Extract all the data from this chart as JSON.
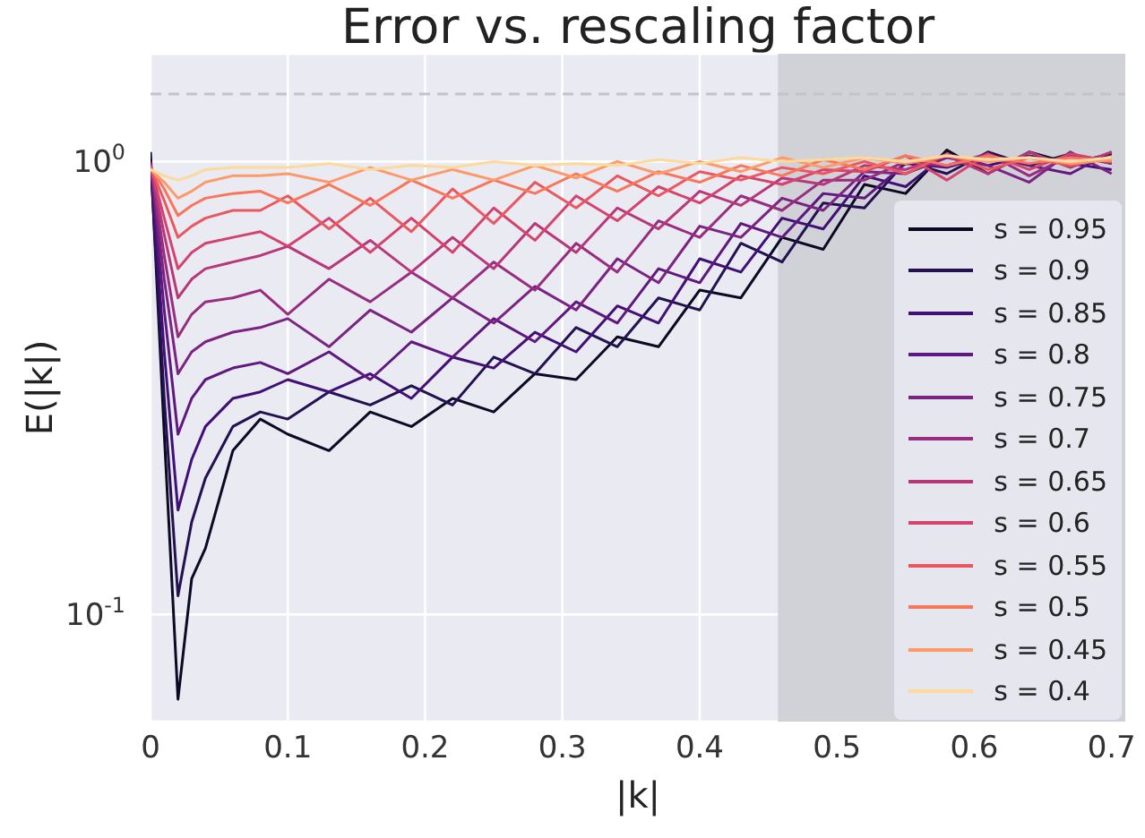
{
  "chart_data": {
    "type": "line",
    "title": "Error vs. rescaling factor",
    "xlabel": "|k|",
    "ylabel": "E(|k|)",
    "x": [
      0,
      0.01,
      0.02,
      0.03,
      0.04,
      0.06,
      0.08,
      0.1,
      0.13,
      0.16,
      0.19,
      0.22,
      0.25,
      0.28,
      0.31,
      0.34,
      0.37,
      0.4,
      0.43,
      0.46,
      0.49,
      0.52,
      0.55,
      0.58,
      0.61,
      0.64,
      0.67,
      0.7
    ],
    "series": [
      {
        "name": "s = 0.95",
        "color": "#0b0924",
        "values": [
          1.05,
          0.25,
          0.065,
          0.12,
          0.14,
          0.23,
          0.27,
          0.25,
          0.23,
          0.28,
          0.26,
          0.3,
          0.28,
          0.34,
          0.33,
          0.41,
          0.39,
          0.52,
          0.5,
          0.68,
          0.64,
          0.89,
          0.85,
          1.06,
          0.94,
          1.05,
          0.99,
          1.04
        ]
      },
      {
        "name": "s = 0.9",
        "color": "#231151",
        "values": [
          1.0,
          0.3,
          0.11,
          0.16,
          0.2,
          0.26,
          0.28,
          0.27,
          0.31,
          0.29,
          0.32,
          0.29,
          0.37,
          0.34,
          0.43,
          0.39,
          0.5,
          0.47,
          0.66,
          0.6,
          0.81,
          0.79,
          1.0,
          0.94,
          1.05,
          0.98,
          1.04,
          0.99
        ]
      },
      {
        "name": "s = 0.85",
        "color": "#410f75",
        "values": [
          1.0,
          0.38,
          0.17,
          0.22,
          0.26,
          0.3,
          0.31,
          0.33,
          0.31,
          0.34,
          0.3,
          0.37,
          0.35,
          0.42,
          0.38,
          0.48,
          0.44,
          0.61,
          0.57,
          0.75,
          0.71,
          0.93,
          0.88,
          1.04,
          0.98,
          1.03,
          0.99,
          0.96
        ]
      },
      {
        "name": "s = 0.8",
        "color": "#5f187f",
        "values": [
          1.0,
          0.47,
          0.25,
          0.3,
          0.33,
          0.35,
          0.36,
          0.34,
          0.38,
          0.33,
          0.4,
          0.37,
          0.45,
          0.4,
          0.49,
          0.44,
          0.58,
          0.54,
          0.73,
          0.68,
          0.85,
          0.83,
          0.99,
          0.97,
          1.03,
          0.98,
          0.94,
          1.05
        ]
      },
      {
        "name": "s = 0.75",
        "color": "#7b2382",
        "values": [
          0.99,
          0.55,
          0.34,
          0.38,
          0.4,
          0.42,
          0.43,
          0.45,
          0.39,
          0.47,
          0.42,
          0.5,
          0.44,
          0.53,
          0.47,
          0.61,
          0.54,
          0.72,
          0.68,
          0.83,
          0.78,
          0.95,
          0.94,
          1.02,
          0.98,
          0.9,
          1.05,
          0.94
        ]
      },
      {
        "name": "s = 0.7",
        "color": "#982d80",
        "values": [
          0.99,
          0.62,
          0.41,
          0.46,
          0.49,
          0.5,
          0.52,
          0.46,
          0.55,
          0.49,
          0.57,
          0.5,
          0.6,
          0.52,
          0.66,
          0.57,
          0.74,
          0.68,
          0.84,
          0.78,
          0.91,
          0.91,
          1.0,
          0.98,
          1.04,
          0.93,
          1.03,
          0.99
        ]
      },
      {
        "name": "s = 0.65",
        "color": "#b73779",
        "values": [
          0.98,
          0.69,
          0.5,
          0.55,
          0.58,
          0.6,
          0.62,
          0.65,
          0.58,
          0.67,
          0.57,
          0.68,
          0.58,
          0.73,
          0.63,
          0.79,
          0.71,
          0.86,
          0.8,
          0.92,
          0.89,
          0.98,
          0.96,
          1.03,
          0.94,
          1.05,
          0.97,
          1.05
        ]
      },
      {
        "name": "s = 0.6",
        "color": "#d3436e",
        "values": [
          0.98,
          0.75,
          0.58,
          0.63,
          0.66,
          0.68,
          0.7,
          0.65,
          0.75,
          0.63,
          0.75,
          0.63,
          0.79,
          0.67,
          0.84,
          0.74,
          0.88,
          0.81,
          0.93,
          0.89,
          0.96,
          0.95,
          1.03,
          0.91,
          1.04,
          0.96,
          1.04,
          1.0
        ]
      },
      {
        "name": "s = 0.55",
        "color": "#eb5760",
        "values": [
          0.97,
          0.82,
          0.68,
          0.72,
          0.75,
          0.78,
          0.78,
          0.84,
          0.71,
          0.83,
          0.7,
          0.87,
          0.73,
          0.9,
          0.79,
          0.93,
          0.84,
          0.95,
          0.91,
          0.97,
          0.94,
          1.0,
          0.94,
          1.04,
          0.96,
          1.02,
          0.98,
          1.02
        ]
      },
      {
        "name": "s = 0.5",
        "color": "#f8765c",
        "values": [
          0.97,
          0.87,
          0.76,
          0.8,
          0.83,
          0.85,
          0.86,
          0.81,
          0.89,
          0.8,
          0.91,
          0.83,
          0.91,
          0.85,
          0.94,
          0.86,
          0.95,
          0.9,
          0.98,
          0.93,
          1.01,
          0.96,
          1.03,
          0.98,
          1.03,
          0.99,
          1.02,
          1.0
        ]
      },
      {
        "name": "s = 0.45",
        "color": "#fd9a6a",
        "values": [
          0.96,
          0.9,
          0.83,
          0.86,
          0.9,
          0.93,
          0.93,
          0.94,
          0.9,
          0.97,
          0.91,
          0.96,
          0.91,
          0.98,
          0.92,
          1.0,
          0.94,
          1.0,
          0.95,
          1.02,
          0.97,
          1.02,
          0.99,
          1.03,
          1.0,
          1.02,
          0.99,
          1.01
        ]
      },
      {
        "name": "s = 0.4",
        "color": "#fdd99b",
        "values": [
          0.96,
          0.93,
          0.91,
          0.93,
          0.96,
          0.97,
          0.97,
          0.97,
          0.99,
          0.96,
          0.98,
          0.97,
          1.0,
          0.98,
          0.99,
          0.98,
          1.01,
          0.99,
          1.02,
          1.0,
          1.01,
          1.02,
          1.0,
          1.03,
          1.01,
          1.02,
          1.0,
          1.02
        ]
      }
    ],
    "log": "y",
    "xlim": [
      0,
      0.71
    ],
    "xticks": [
      0,
      0.1,
      0.2,
      0.3,
      0.4,
      0.5,
      0.6,
      0.7
    ],
    "ylim": [
      0.058,
      1.73
    ],
    "yticks": [
      {
        "value": 0.1,
        "label": "10$^{-1}$"
      },
      {
        "value": 1,
        "label": "10$^{0}$"
      }
    ],
    "ref_lines": [
      {
        "axis": "y",
        "value": 1.41,
        "color": "#c4c4c8",
        "line_style": "dashed"
      }
    ],
    "bands": [
      {
        "axis": "x",
        "from": 0.457,
        "to": 0.71,
        "color": "#d1d1d8"
      }
    ],
    "grid": true,
    "legend": "right",
    "line_style": "solid",
    "marker": "none"
  }
}
